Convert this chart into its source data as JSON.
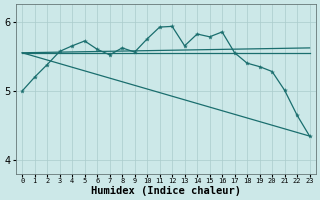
{
  "bg_color": "#cce8e8",
  "grid_color": "#aacccc",
  "line_color": "#1a6e6e",
  "xlabel": "Humidex (Indice chaleur)",
  "xlabel_fontsize": 7.5,
  "xlim": [
    -0.5,
    23.5
  ],
  "ylim": [
    3.8,
    6.25
  ],
  "yticks": [
    4,
    5,
    6
  ],
  "xtick_labels": [
    "0",
    "1",
    "2",
    "3",
    "4",
    "5",
    "6",
    "7",
    "8",
    "9",
    "10",
    "11",
    "12",
    "13",
    "14",
    "15",
    "16",
    "17",
    "18",
    "19",
    "20",
    "21",
    "22",
    "23"
  ],
  "main_x": [
    0,
    1,
    2,
    3,
    4,
    5,
    6,
    7,
    8,
    9,
    10,
    11,
    12,
    13,
    14,
    15,
    16,
    17,
    18,
    19,
    20,
    21,
    22,
    23
  ],
  "main_y": [
    5.0,
    5.2,
    5.38,
    5.57,
    5.65,
    5.72,
    5.6,
    5.52,
    5.62,
    5.56,
    5.75,
    5.92,
    5.93,
    5.65,
    5.82,
    5.78,
    5.85,
    5.55,
    5.4,
    5.35,
    5.28,
    5.01,
    4.65,
    4.35
  ],
  "line1_x": [
    0,
    23
  ],
  "line1_y": [
    5.55,
    5.55
  ],
  "line2_x": [
    0,
    23
  ],
  "line2_y": [
    5.55,
    5.62
  ],
  "line3_x": [
    0,
    23
  ],
  "line3_y": [
    5.55,
    4.35
  ]
}
